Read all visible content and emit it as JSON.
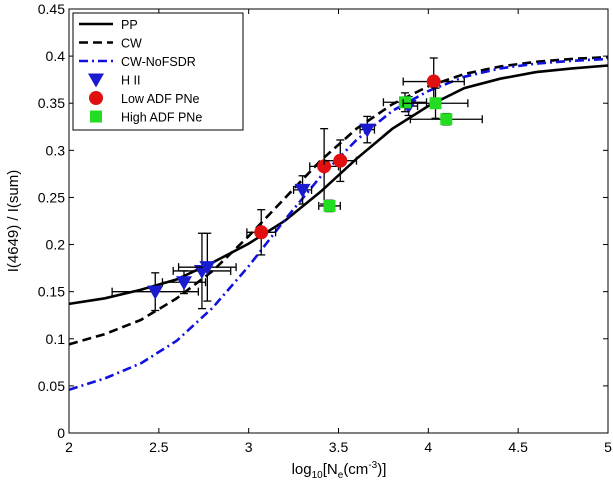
{
  "chart_data": {
    "type": "line",
    "xlabel": {
      "pre": "log",
      "sub1": "10",
      "mid": "[N",
      "sub2": "e",
      "mid2": "(cm",
      "sup": "-3",
      "post": ")]"
    },
    "ylabel": "I(4649) / I(sum)",
    "xlim": [
      2,
      5
    ],
    "ylim": [
      0,
      0.45
    ],
    "xticks": [
      2,
      2.5,
      3,
      3.5,
      4,
      4.5,
      5
    ],
    "yticks": [
      0,
      0.05,
      0.1,
      0.15,
      0.2,
      0.25,
      0.3,
      0.35,
      0.4,
      0.45
    ],
    "xtick_labels": [
      "2",
      "2.5",
      "3",
      "3.5",
      "4",
      "4.5",
      "5"
    ],
    "ytick_labels": [
      "0",
      "0.05",
      "0.1",
      "0.15",
      "0.2",
      "0.25",
      "0.3",
      "0.35",
      "0.4",
      "0.45"
    ],
    "grid": false,
    "legend_position": "top-left",
    "curves": [
      {
        "name": "PP",
        "color": "#000000",
        "dash": "solid",
        "x": [
          2.0,
          2.2,
          2.4,
          2.6,
          2.8,
          3.0,
          3.2,
          3.4,
          3.6,
          3.8,
          4.0,
          4.2,
          4.4,
          4.6,
          4.8,
          5.0
        ],
        "y": [
          0.137,
          0.143,
          0.152,
          0.163,
          0.181,
          0.201,
          0.225,
          0.256,
          0.291,
          0.323,
          0.347,
          0.366,
          0.376,
          0.383,
          0.387,
          0.39
        ]
      },
      {
        "name": "CW",
        "color": "#000000",
        "dash": "dash",
        "x": [
          2.0,
          2.2,
          2.4,
          2.6,
          2.8,
          3.0,
          3.2,
          3.4,
          3.6,
          3.8,
          4.0,
          4.2,
          4.4,
          4.6,
          4.8,
          5.0
        ],
        "y": [
          0.094,
          0.105,
          0.12,
          0.143,
          0.172,
          0.209,
          0.249,
          0.289,
          0.323,
          0.349,
          0.368,
          0.381,
          0.389,
          0.394,
          0.397,
          0.399
        ]
      },
      {
        "name": "CW-NoFSDR",
        "color": "#1010e0",
        "dash": "dashdot",
        "x": [
          2.0,
          2.2,
          2.4,
          2.6,
          2.8,
          3.0,
          3.2,
          3.4,
          3.6,
          3.8,
          4.0,
          4.2,
          4.4,
          4.6,
          4.8,
          5.0
        ],
        "y": [
          0.046,
          0.058,
          0.074,
          0.098,
          0.133,
          0.177,
          0.226,
          0.272,
          0.311,
          0.342,
          0.363,
          0.378,
          0.387,
          0.392,
          0.395,
          0.397
        ]
      }
    ],
    "point_series": [
      {
        "name": "H II",
        "marker": "triangle-down",
        "color": "#1a1ad0",
        "points": [
          {
            "x": 2.48,
            "y": 0.15,
            "xerr": 0.24,
            "yerr": 0.02
          },
          {
            "x": 2.64,
            "y": 0.16,
            "xerr": 0.12,
            "yerr": 0.012
          },
          {
            "x": 2.74,
            "y": 0.172,
            "xerr": 0.16,
            "yerr": 0.04
          },
          {
            "x": 2.77,
            "y": 0.176,
            "xerr": 0.16,
            "yerr": 0.036
          },
          {
            "x": 3.3,
            "y": 0.258,
            "xerr": 0.05,
            "yerr": 0.015
          },
          {
            "x": 3.66,
            "y": 0.322,
            "xerr": 0.04,
            "yerr": 0.014
          },
          {
            "x": 3.89,
            "y": 0.347,
            "xerr": 0.05,
            "yerr": 0.01
          }
        ]
      },
      {
        "name": "Low ADF PNe",
        "marker": "circle",
        "color": "#e01010",
        "points": [
          {
            "x": 3.07,
            "y": 0.213,
            "xerr": 0.08,
            "yerr": 0.024
          },
          {
            "x": 3.42,
            "y": 0.283,
            "xerr": 0.08,
            "yerr": 0.04
          },
          {
            "x": 3.51,
            "y": 0.289,
            "xerr": 0.09,
            "yerr": 0.022
          },
          {
            "x": 4.03,
            "y": 0.373,
            "xerr": 0.17,
            "yerr": 0.025
          }
        ]
      },
      {
        "name": "High ADF PNe",
        "marker": "square",
        "color": "#22dd22",
        "points": [
          {
            "x": 3.45,
            "y": 0.241,
            "xerr": 0.06,
            "yerr": 0.006
          },
          {
            "x": 3.87,
            "y": 0.351,
            "xerr": 0.12,
            "yerr": 0.01
          },
          {
            "x": 4.04,
            "y": 0.35,
            "xerr": 0.18,
            "yerr": 0.016
          },
          {
            "x": 4.1,
            "y": 0.333,
            "xerr": 0.2,
            "yerr": 0.006
          }
        ]
      }
    ],
    "legend": [
      {
        "label": "PP",
        "kind": "line",
        "color": "#000000",
        "dash": "solid"
      },
      {
        "label": "CW",
        "kind": "line",
        "color": "#000000",
        "dash": "dash"
      },
      {
        "label": "CW-NoFSDR",
        "kind": "line",
        "color": "#1010e0",
        "dash": "dashdot"
      },
      {
        "label": "H II",
        "kind": "marker",
        "marker": "triangle-down",
        "color": "#1a1ad0"
      },
      {
        "label": "Low ADF PNe",
        "kind": "marker",
        "marker": "circle",
        "color": "#e01010"
      },
      {
        "label": "High ADF PNe",
        "kind": "marker",
        "marker": "square",
        "color": "#22dd22"
      }
    ]
  }
}
